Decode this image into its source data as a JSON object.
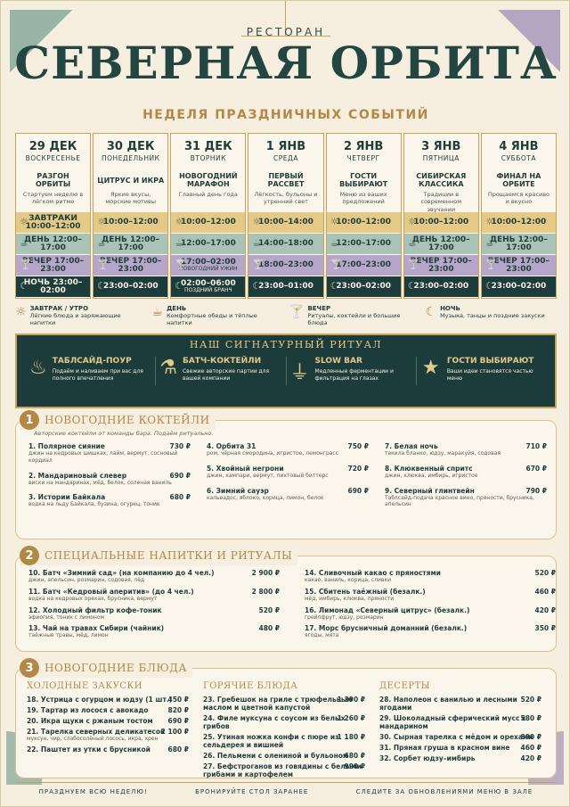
{
  "header": {
    "eyebrow": "РЕСТОРАН",
    "title": "СЕВЕРНАЯ ОРБИТА",
    "subtitle": "НЕДЕЛЯ ПРАЗДНИЧНЫХ СОБЫТИЙ"
  },
  "days": [
    {
      "date": "29 ДЕК",
      "weekday": "ВОСКРЕСЕНЬЕ",
      "name": "РАЗГОН ОРБИТЫ",
      "desc": "Стартуем неделю в лёгком ритме",
      "s1": "ЗАВТРАКИ 10:00–12:00",
      "s2": "ДЕНЬ 12:00–17:00",
      "s3": "ВЕЧЕР 17:00–23:00",
      "s4": "НОЧЬ 23:00–02:00"
    },
    {
      "date": "30 ДЕК",
      "weekday": "ПОНЕДЕЛЬНИК",
      "name": "ЦИТРУС И ИКРА",
      "desc": "Яркие вкусы, морские мотивы",
      "s1": "10:00–12:00",
      "s2": "ДЕНЬ 12:00–17:00",
      "s3": "ВЕЧЕР 17:00–23:00",
      "s4": "23:00–02:00"
    },
    {
      "date": "31 ДЕК",
      "weekday": "ВТОРНИК",
      "name": "НОВОГОДНИЙ МАРАФОН",
      "desc": "Главный день года",
      "s1": "10:00–12:00",
      "s2": "12:00–17:00",
      "s3": "17:00–02:00",
      "s3b": "НОВОГОДНИЙ УЖИН",
      "s4": "02:00–06:00",
      "s4b": "ПОЗДНИЙ БРАНЧ"
    },
    {
      "date": "1 ЯНВ",
      "weekday": "СРЕДА",
      "name": "ПЕРВЫЙ РАССВЕТ",
      "desc": "Лёгкость, бульоны и утренний свет",
      "s1": "10:00–14:00",
      "s2": "14:00–18:00",
      "s3": "18:00–23:00",
      "s4": "23:00–01:00"
    },
    {
      "date": "2 ЯНВ",
      "weekday": "ЧЕТВЕРГ",
      "name": "ГОСТИ ВЫБИРАЮТ",
      "desc": "Меню из ваших предложений",
      "s1": "10:00–12:00",
      "s2": "12:00–17:00",
      "s3": "17:00–23:00",
      "s4": "23:00–02:00"
    },
    {
      "date": "3 ЯНВ",
      "weekday": "ПЯТНИЦА",
      "name": "СИБИРСКАЯ КЛАССИКА",
      "desc": "Традиции в современном звучании",
      "s1": "10:00–12:00",
      "s2": "ДЕНЬ 12:00–17:00",
      "s3": "ВЕЧЕР 17:00–23:00",
      "s4": "23:00–02:00"
    },
    {
      "date": "4 ЯНВ",
      "weekday": "СУББОТА",
      "name": "ФИНАЛ НА ОРБИТЕ",
      "desc": "Прощаемся красиво и вкусно",
      "s1": "10:00–12:00",
      "s2": "ДЕНЬ 12:00–17:00",
      "s3": "ВЕЧЕР 17:00–23:00",
      "s4": "23:00–02:00"
    }
  ],
  "legend": [
    {
      "t": "ЗАВТРАК / УТРО",
      "d": "Лёгкие блюда и заряжающие напитки",
      "icon": "sun-icon"
    },
    {
      "t": "ДЕНЬ",
      "d": "Комфортные обеды и тёплые напитки",
      "icon": "teapot-icon"
    },
    {
      "t": "ВЕЧЕР",
      "d": "Ритуалы, коктейли и большие блюда",
      "icon": "cocktail-icon"
    },
    {
      "t": "НОЧЬ",
      "d": "Музыка, танцы и поздние закуски",
      "icon": "moon-icon"
    }
  ],
  "ritual": {
    "title": "НАШ СИГНАТУРНЫЙ РИТУАЛ",
    "items": [
      {
        "t": "ТАБЛСАЙД-ПОУР",
        "d": "Подаём и наливаем при вас для полного впечатления",
        "icon": "kettle-icon"
      },
      {
        "t": "БАТЧ-КОКТЕЙЛИ",
        "d": "Свежие авторские партии для вашей компании",
        "icon": "bottles-icon"
      },
      {
        "t": "SLOW BAR",
        "d": "Медленные ферментации и фильтрация на глазах",
        "icon": "dripper-icon"
      },
      {
        "t": "ГОСТИ ВЫБИРАЮТ",
        "d": "Ваши идеи становятся частью меню",
        "icon": "star-icon"
      }
    ]
  },
  "s1": {
    "num": "1",
    "title": "НОВОГОДНИЕ КОКТЕЙЛИ",
    "note": "Авторские коктейли от команды бара. Подаём ритуально.",
    "cols": [
      [
        {
          "n": "1. Полярное сияние",
          "d": "джин на кедровых шишках, лайм, вермут, сосновый кордиал",
          "p": "730 ₽"
        },
        {
          "n": "2. Мандариновый слевер",
          "d": "виски на мандаринах, мёд, белок, соленая ваниль",
          "p": "690 ₽"
        },
        {
          "n": "3. Истории Байкала",
          "d": "водка на льду Байкала, бузина, огурец, тоник",
          "p": "680 ₽"
        }
      ],
      [
        {
          "n": "4. Орбита 31",
          "d": "ром, чёрная смородина, игристое, лемонграсс",
          "p": "750 ₽"
        },
        {
          "n": "5. Хвойный негрони",
          "d": "джин, кампари, вермут, пихтовый биттерс",
          "p": "720 ₽"
        },
        {
          "n": "6. Зимний сауэр",
          "d": "кальвадос, яблоко, корица, лимон, белок",
          "p": "690 ₽"
        }
      ],
      [
        {
          "n": "7. Белая ночь",
          "d": "текила бланко, юдзу, маракуйя, содовая",
          "p": "710 ₽"
        },
        {
          "n": "8. Клюквенный спритс",
          "d": "джин, клюква, имбирь, игристое",
          "p": "670 ₽"
        },
        {
          "n": "9. Северный глинтвейн",
          "d": "Таблсайд-подача красное вино, пряности, брусника, апельсин",
          "p": "790 ₽"
        }
      ]
    ]
  },
  "s2": {
    "num": "2",
    "title": "СПЕЦИАЛЬНЫЕ НАПИТКИ И РИТУАЛЫ",
    "cols": [
      [
        {
          "n": "10. Батч «Зимний сад» (на компанию до 4 чел.)",
          "d": "джин, апельсин, розмарин, содовая, лёд",
          "p": "2 900 ₽"
        },
        {
          "n": "11. Батч «Кедровый аперитив» (до 4 чел.)",
          "d": "водка на кедровых орехах, брусника, вермут",
          "p": "2 800 ₽"
        },
        {
          "n": "12. Холодный фильтр кофе-тоник",
          "d": "эфиопия, тоник с лимоном",
          "p": "520 ₽"
        },
        {
          "n": "13. Чай на травах Сибири (чайник)",
          "d": "таёжные травы, мёд, лимон",
          "p": "480 ₽"
        }
      ],
      [
        {
          "n": "14. Сливочный какао с пряностями",
          "d": "какао, ваниль, корица, сливки",
          "p": "520 ₽"
        },
        {
          "n": "15. Сбитень таёжный (безалк.)",
          "d": "мёд, имбирь, клюква, пряности",
          "p": "460 ₽"
        },
        {
          "n": "16. Лимонад «Северный цитрус» (безалк.)",
          "d": "грейпфрут, юдзу, розмарин",
          "p": "420 ₽"
        },
        {
          "n": "17. Морс брусничный доманний (безалк.)",
          "d": "ягоды, мята",
          "p": "350 ₽"
        }
      ]
    ]
  },
  "s3": {
    "num": "3",
    "title": "НОВОГОДНИЕ БЛЮДА",
    "cols": [
      {
        "sub": "ХОЛОДНЫЕ ЗАКУСКИ",
        "items": [
          {
            "n": "18. Устрица с огурцом и юдзу (1 шт.)",
            "d": "",
            "p": "450 ₽"
          },
          {
            "n": "19. Тартар из лосося с авокадо",
            "d": "",
            "p": "820 ₽"
          },
          {
            "n": "20. Икра щуки с ржаным тостом",
            "d": "",
            "p": "690 ₽"
          },
          {
            "n": "21. Тарелка северных деликатесов",
            "d": "муксун, чир, слабосолёный лосось, икра, хрен",
            "p": "2 100 ₽"
          },
          {
            "n": "22. Паштет из утки с брусникой",
            "d": "",
            "p": "680 ₽"
          }
        ]
      },
      {
        "sub": "ГОРЯЧИЕ БЛЮДА",
        "items": [
          {
            "n": "23. Гребешок на гриле с трюфельным маслом и цветной капустой",
            "d": "",
            "p": "1 390 ₽"
          },
          {
            "n": "24. Филе муксуна с соусом из белых грибов",
            "d": "",
            "p": "1 260 ₽"
          },
          {
            "n": "25. Утиная ножка конфи с пюре из сельдерея и вишней",
            "d": "",
            "p": "1 180 ₽"
          },
          {
            "n": "26. Пельмени с олениной и бульоном",
            "d": "",
            "p": "680 ₽"
          },
          {
            "n": "27. Бефстроганов из говядины с белыми грибами и картофелем",
            "d": "",
            "p": "990 ₽"
          }
        ]
      },
      {
        "sub": "ДЕСЕРТЫ",
        "items": [
          {
            "n": "28. Наполеон с ванилью и лесными ягодами",
            "d": "",
            "p": "520 ₽"
          },
          {
            "n": "29. Шоколадный сферический мусс с мандарином",
            "d": "",
            "p": "580 ₽"
          },
          {
            "n": "30. Сырная тарелка с мёдом и орехами",
            "d": "",
            "p": "890 ₽"
          },
          {
            "n": "31. Пряная груша в красном вине",
            "d": "",
            "p": "460 ₽"
          },
          {
            "n": "32. Сорбет юдзу–имбирь",
            "d": "",
            "p": "420 ₽"
          }
        ]
      }
    ]
  },
  "footer": [
    "ПРАЗДНУЕМ ВСЮ НЕДЕЛЮ!",
    "БРОНИРУЙТЕ СТОЛ ЗАРАНЕЕ",
    "СЛЕДИТЕ ЗА ОБНОВЛЕНИЯМИ МЕНЮ В ЗАЛЕ"
  ]
}
